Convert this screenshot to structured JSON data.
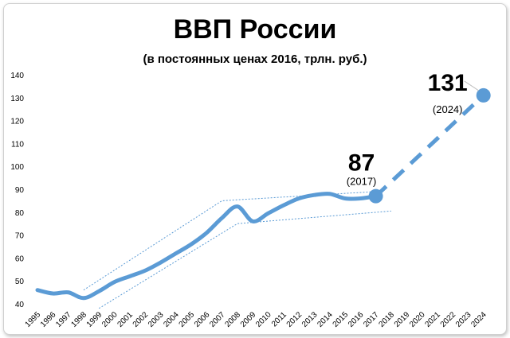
{
  "chart_data": {
    "type": "line",
    "title": "ВВП России",
    "subtitle": "(в постоянных ценах 2016, трлн. руб.)",
    "xlabel": "",
    "ylabel": "",
    "x": [
      "1995",
      "1996",
      "1997",
      "1998",
      "1999",
      "2000",
      "2001",
      "2002",
      "2003",
      "2004",
      "2005",
      "2006",
      "2007",
      "2008",
      "2009",
      "2010",
      "2011",
      "2012",
      "2013",
      "2014",
      "2015",
      "2016",
      "2017",
      "2018",
      "2019",
      "2020",
      "2021",
      "2022",
      "2023",
      "2024"
    ],
    "ylim": [
      40,
      140
    ],
    "yticks": [
      40,
      50,
      60,
      70,
      80,
      90,
      100,
      110,
      120,
      130,
      140
    ],
    "grid": false,
    "series": [
      {
        "name": "",
        "style": "solid",
        "color": "#5b9bd5",
        "x": [
          "1995",
          "1996",
          "1997",
          "1998",
          "1999",
          "2000",
          "2001",
          "2002",
          "2003",
          "2004",
          "2005",
          "2006",
          "2007",
          "2008",
          "2009",
          "2010",
          "2011",
          "2012",
          "2013",
          "2014",
          "2015",
          "2016",
          "2017"
        ],
        "values": [
          46,
          44.5,
          45,
          42.5,
          45.5,
          49.5,
          52,
          54.5,
          58,
          62,
          66,
          71,
          77.5,
          82.5,
          76,
          79.5,
          83,
          86,
          87.5,
          88,
          86,
          86,
          87
        ]
      },
      {
        "name": "",
        "style": "dashed",
        "color": "#5b9bd5",
        "x": [
          "2017",
          "2024"
        ],
        "values": [
          87,
          131
        ]
      }
    ],
    "trend_band": {
      "upper": {
        "x": [
          "1998",
          "2007",
          "2017"
        ],
        "values": [
          46,
          85,
          89
        ]
      },
      "lower": {
        "x": [
          "1999",
          "2008",
          "2018"
        ],
        "values": [
          38,
          75,
          80.5
        ]
      }
    },
    "annotations": [
      {
        "x": "2017",
        "value": 87,
        "label": "87",
        "sublabel": "(2017)"
      },
      {
        "x": "2024",
        "value": 131,
        "label": "131",
        "sublabel": "(2024)"
      }
    ]
  }
}
